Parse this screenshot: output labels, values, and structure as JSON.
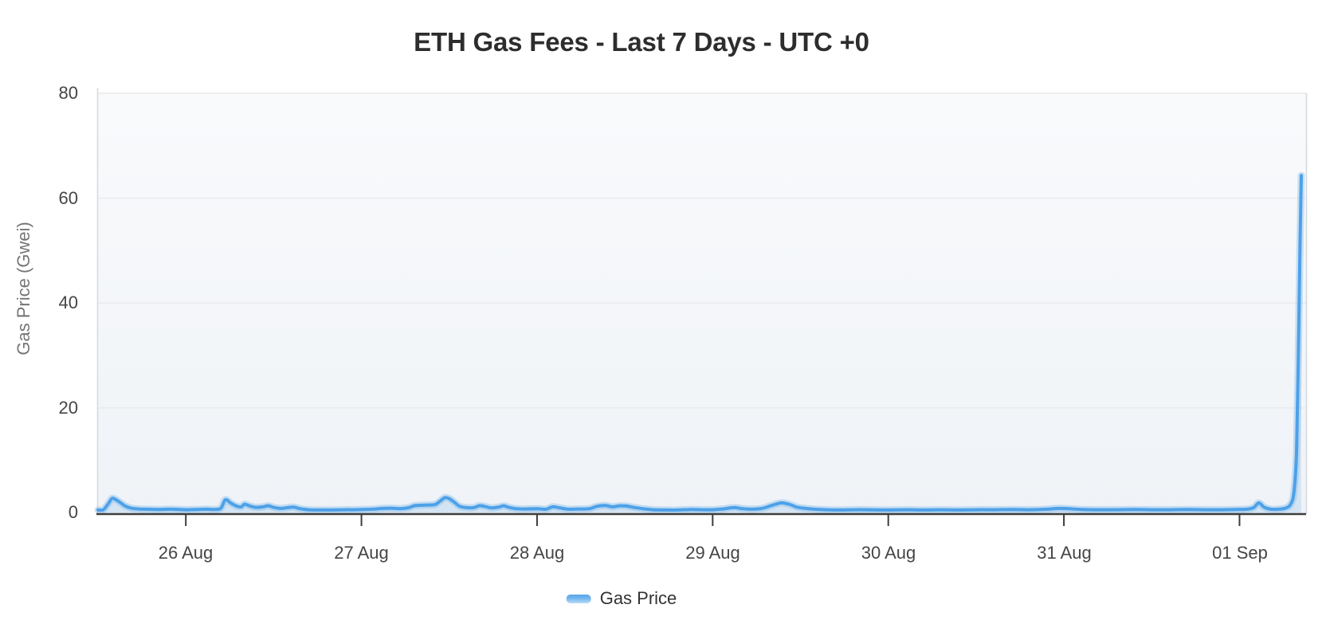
{
  "chart_data": {
    "type": "line",
    "title": "ETH Gas Fees - Last 7 Days - UTC +0",
    "xlabel": "",
    "ylabel": "Gas Price (Gwei)",
    "x_tick_labels": [
      "26 Aug",
      "27 Aug",
      "28 Aug",
      "29 Aug",
      "30 Aug",
      "31 Aug",
      "01 Sep"
    ],
    "x_tick_positions_days": [
      0,
      1,
      2,
      3,
      4,
      5,
      6
    ],
    "y_ticks": [
      0,
      20,
      40,
      60,
      80
    ],
    "y_tick_labels_top_down": [
      "80",
      "60",
      "40",
      "20",
      "0"
    ],
    "xlim_days": [
      -0.5,
      6.37
    ],
    "ylim": [
      0,
      80
    ],
    "grid": "horizontal",
    "legend_position": "bottom",
    "series": [
      {
        "name": "Gas Price",
        "color": "#4da1e8",
        "halo_color": "rgba(130,185,235,0.40)",
        "fill_top_color": "rgba(90,160,220,0.10)",
        "fill_bottom_color": "rgba(90,160,220,0.18)",
        "peak_value_gwei": 64.3,
        "points": [
          [
            -0.5,
            0.55
          ],
          [
            -0.47,
            0.6
          ],
          [
            -0.445,
            1.6
          ],
          [
            -0.42,
            2.75
          ],
          [
            -0.4,
            2.55
          ],
          [
            -0.37,
            1.9
          ],
          [
            -0.345,
            1.3
          ],
          [
            -0.31,
            0.9
          ],
          [
            -0.27,
            0.75
          ],
          [
            -0.22,
            0.7
          ],
          [
            -0.15,
            0.65
          ],
          [
            -0.08,
            0.7
          ],
          [
            0.0,
            0.6
          ],
          [
            0.06,
            0.65
          ],
          [
            0.12,
            0.7
          ],
          [
            0.17,
            0.65
          ],
          [
            0.2,
            0.9
          ],
          [
            0.225,
            2.5
          ],
          [
            0.255,
            1.9
          ],
          [
            0.285,
            1.35
          ],
          [
            0.315,
            1.15
          ],
          [
            0.335,
            1.65
          ],
          [
            0.365,
            1.3
          ],
          [
            0.4,
            1.05
          ],
          [
            0.44,
            1.15
          ],
          [
            0.47,
            1.35
          ],
          [
            0.5,
            1.05
          ],
          [
            0.54,
            0.85
          ],
          [
            0.58,
            1.0
          ],
          [
            0.615,
            1.1
          ],
          [
            0.65,
            0.8
          ],
          [
            0.7,
            0.6
          ],
          [
            0.76,
            0.55
          ],
          [
            0.83,
            0.55
          ],
          [
            0.9,
            0.6
          ],
          [
            0.96,
            0.6
          ],
          [
            1.0,
            0.65
          ],
          [
            1.06,
            0.7
          ],
          [
            1.12,
            0.85
          ],
          [
            1.17,
            0.9
          ],
          [
            1.22,
            0.8
          ],
          [
            1.27,
            1.0
          ],
          [
            1.3,
            1.35
          ],
          [
            1.34,
            1.45
          ],
          [
            1.38,
            1.5
          ],
          [
            1.42,
            1.6
          ],
          [
            1.45,
            2.3
          ],
          [
            1.475,
            2.9
          ],
          [
            1.5,
            2.7
          ],
          [
            1.53,
            2.0
          ],
          [
            1.56,
            1.25
          ],
          [
            1.6,
            1.0
          ],
          [
            1.64,
            1.0
          ],
          [
            1.67,
            1.35
          ],
          [
            1.7,
            1.25
          ],
          [
            1.74,
            0.95
          ],
          [
            1.78,
            1.1
          ],
          [
            1.81,
            1.35
          ],
          [
            1.84,
            1.05
          ],
          [
            1.88,
            0.8
          ],
          [
            1.93,
            0.75
          ],
          [
            2.0,
            0.8
          ],
          [
            2.05,
            0.7
          ],
          [
            2.09,
            1.15
          ],
          [
            2.13,
            0.95
          ],
          [
            2.18,
            0.7
          ],
          [
            2.24,
            0.75
          ],
          [
            2.3,
            0.8
          ],
          [
            2.34,
            1.25
          ],
          [
            2.39,
            1.4
          ],
          [
            2.43,
            1.15
          ],
          [
            2.47,
            1.35
          ],
          [
            2.51,
            1.3
          ],
          [
            2.55,
            1.05
          ],
          [
            2.6,
            0.8
          ],
          [
            2.66,
            0.6
          ],
          [
            2.73,
            0.55
          ],
          [
            2.8,
            0.55
          ],
          [
            2.88,
            0.65
          ],
          [
            2.95,
            0.6
          ],
          [
            3.0,
            0.6
          ],
          [
            3.06,
            0.75
          ],
          [
            3.1,
            0.95
          ],
          [
            3.13,
            1.0
          ],
          [
            3.17,
            0.8
          ],
          [
            3.22,
            0.7
          ],
          [
            3.28,
            0.85
          ],
          [
            3.33,
            1.35
          ],
          [
            3.38,
            1.85
          ],
          [
            3.4,
            1.9
          ],
          [
            3.44,
            1.6
          ],
          [
            3.48,
            1.1
          ],
          [
            3.53,
            0.85
          ],
          [
            3.58,
            0.7
          ],
          [
            3.65,
            0.6
          ],
          [
            3.73,
            0.55
          ],
          [
            3.8,
            0.6
          ],
          [
            3.88,
            0.6
          ],
          [
            3.95,
            0.55
          ],
          [
            4.0,
            0.55
          ],
          [
            4.1,
            0.6
          ],
          [
            4.2,
            0.55
          ],
          [
            4.3,
            0.6
          ],
          [
            4.4,
            0.55
          ],
          [
            4.5,
            0.6
          ],
          [
            4.6,
            0.6
          ],
          [
            4.7,
            0.65
          ],
          [
            4.8,
            0.6
          ],
          [
            4.9,
            0.7
          ],
          [
            4.97,
            0.85
          ],
          [
            5.03,
            0.8
          ],
          [
            5.1,
            0.65
          ],
          [
            5.2,
            0.6
          ],
          [
            5.3,
            0.6
          ],
          [
            5.4,
            0.65
          ],
          [
            5.5,
            0.6
          ],
          [
            5.6,
            0.6
          ],
          [
            5.7,
            0.65
          ],
          [
            5.8,
            0.6
          ],
          [
            5.9,
            0.6
          ],
          [
            5.98,
            0.65
          ],
          [
            6.04,
            0.7
          ],
          [
            6.08,
            1.0
          ],
          [
            6.11,
            1.9
          ],
          [
            6.14,
            1.1
          ],
          [
            6.18,
            0.7
          ],
          [
            6.22,
            0.7
          ],
          [
            6.26,
            0.9
          ],
          [
            6.29,
            1.6
          ],
          [
            6.31,
            4.0
          ],
          [
            6.325,
            12.0
          ],
          [
            6.335,
            30.0
          ],
          [
            6.345,
            52.0
          ],
          [
            6.352,
            64.3
          ]
        ]
      }
    ]
  },
  "style": {
    "plot_bg_top": "#f9fafc",
    "plot_bg_bottom": "#eff3f7",
    "grid_color": "#e9eaec",
    "axis_color": "#3d3d3d",
    "side_border_color": "#d4d8dc",
    "tick_text_color": "#454545",
    "title_color": "#2d2d2d"
  }
}
